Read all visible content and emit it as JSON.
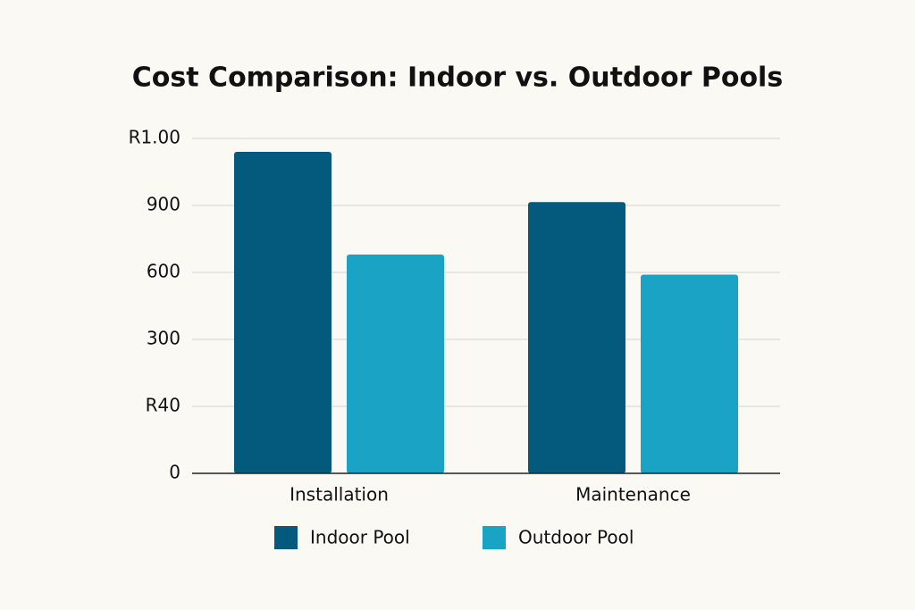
{
  "chart_data": {
    "type": "bar",
    "title": "Cost Comparison: Indoor vs. Outdoor Pools",
    "categories": [
      "Installation",
      "Maintenance"
    ],
    "series": [
      {
        "name": "Indoor Pool",
        "color": "#045a7c",
        "values": [
          1140,
          915
        ]
      },
      {
        "name": "Outdoor Pool",
        "color": "#1ba3c6",
        "values": [
          680,
          590
        ]
      }
    ],
    "ylim": [
      -300,
      1200
    ],
    "yticks": [
      {
        "value": -300,
        "label": "0"
      },
      {
        "value": 0,
        "label": "R40"
      },
      300,
      600,
      900,
      {
        "value": 1200,
        "label": "R1.00"
      }
    ],
    "grid": true,
    "legend": "bottom"
  }
}
